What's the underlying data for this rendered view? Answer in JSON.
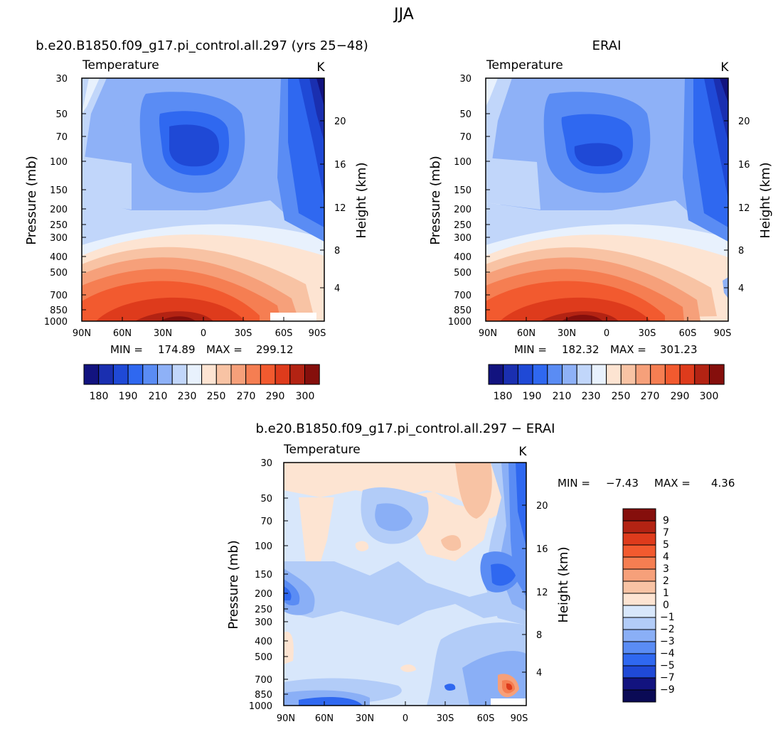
{
  "figure": {
    "title": "JJA"
  },
  "chart_data": [
    {
      "type": "heatmap",
      "panel_title": "b.e20.B1850.f09_g17.pi_control.all.297 (yrs 25−48)",
      "variable_label": "Temperature",
      "units": "K",
      "ylabel_left": "Pressure (mb)",
      "ylabel_right": "Height (km)",
      "pressure_ticks": [
        "30",
        "50",
        "70",
        "100",
        "150",
        "200",
        "250",
        "300",
        "400",
        "500",
        "700",
        "850",
        "1000"
      ],
      "height_ticks": [
        "20",
        "16",
        "12",
        "8",
        "4"
      ],
      "lat_ticks": [
        "90N",
        "60N",
        "30N",
        "0",
        "30S",
        "60S",
        "90S"
      ],
      "stats": {
        "min_label": "MIN =",
        "min": "174.89",
        "max_label": "MAX =",
        "max": "299.12"
      },
      "colorbar_labels": [
        "180",
        "190",
        "210",
        "230",
        "250",
        "270",
        "290",
        "300"
      ]
    },
    {
      "type": "heatmap",
      "panel_title": "ERAI",
      "variable_label": "Temperature",
      "units": "K",
      "ylabel_left": "Pressure (mb)",
      "ylabel_right": "Height (km)",
      "pressure_ticks": [
        "30",
        "50",
        "70",
        "100",
        "150",
        "200",
        "250",
        "300",
        "400",
        "500",
        "700",
        "850",
        "1000"
      ],
      "height_ticks": [
        "20",
        "16",
        "12",
        "8",
        "4"
      ],
      "lat_ticks": [
        "90N",
        "60N",
        "30N",
        "0",
        "30S",
        "60S",
        "90S"
      ],
      "stats": {
        "min_label": "MIN =",
        "min": "182.32",
        "max_label": "MAX =",
        "max": "301.23"
      },
      "colorbar_labels": [
        "180",
        "190",
        "210",
        "230",
        "250",
        "270",
        "290",
        "300"
      ]
    },
    {
      "type": "heatmap",
      "panel_title": "b.e20.B1850.f09_g17.pi_control.all.297 − ERAI",
      "variable_label": "Temperature",
      "units": "K",
      "ylabel_left": "Pressure (mb)",
      "ylabel_right": "Height (km)",
      "pressure_ticks": [
        "30",
        "50",
        "70",
        "100",
        "150",
        "200",
        "250",
        "300",
        "400",
        "500",
        "700",
        "850",
        "1000"
      ],
      "height_ticks": [
        "20",
        "16",
        "12",
        "8",
        "4"
      ],
      "lat_ticks": [
        "90N",
        "60N",
        "30N",
        "0",
        "30S",
        "60S",
        "90S"
      ],
      "stats": {
        "min_label": "MIN =",
        "min": "−7.43",
        "max_label": "MAX =",
        "max": "4.36"
      },
      "colorbar_labels": [
        "9",
        "7",
        "5",
        "4",
        "3",
        "2",
        "1",
        "0",
        "−1",
        "−2",
        "−3",
        "−4",
        "−5",
        "−7",
        "−9"
      ]
    }
  ],
  "colors": {
    "abs_palette": [
      "#12137f",
      "#1a2fb0",
      "#1f49d6",
      "#2f68f0",
      "#5a8cf4",
      "#8eb1f7",
      "#c1d6fa",
      "#e8f1fd",
      "#fde4d2",
      "#f8c3a4",
      "#f6a07a",
      "#f57e52",
      "#f25a2f",
      "#de3b1c",
      "#b32313",
      "#850f0c"
    ],
    "diff_palette": [
      "#850f0c",
      "#b32313",
      "#de3b1c",
      "#f25a2f",
      "#f57e52",
      "#f6a07a",
      "#f8c3a4",
      "#fde4d2",
      "#d8e7fb",
      "#b2ccf8",
      "#8aafF6",
      "#5a8cf4",
      "#2f68f0",
      "#1f49d6",
      "#12137f",
      "#0a0a55"
    ]
  }
}
